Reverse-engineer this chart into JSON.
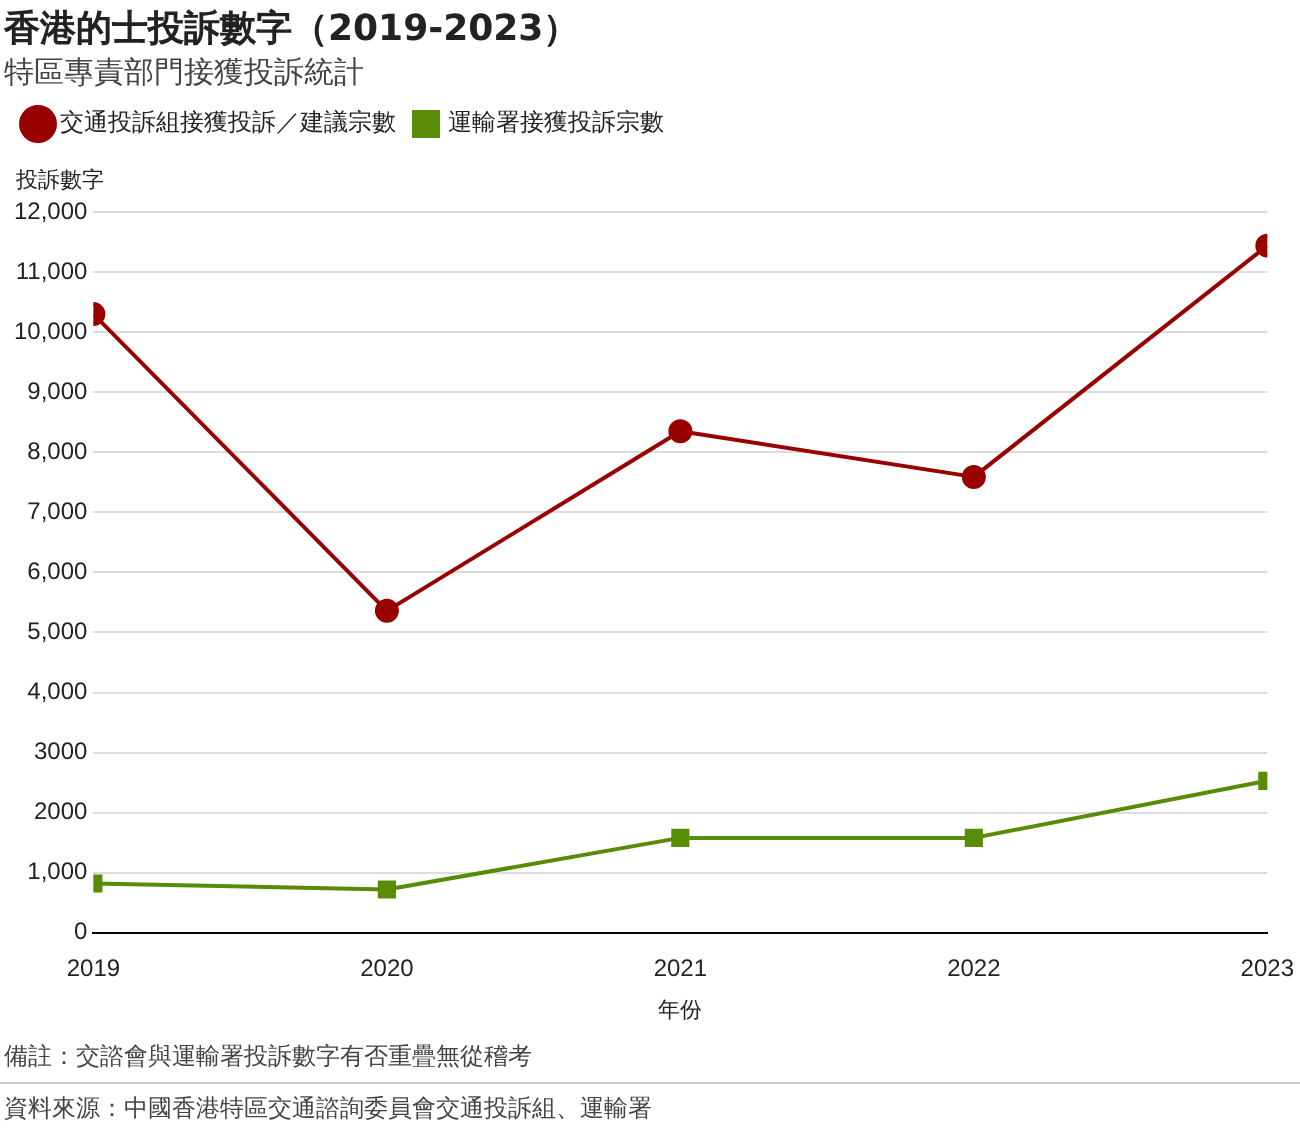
{
  "chart_data": {
    "type": "line",
    "title": "香港的士投訴數字（2019-2023）",
    "subtitle": "特區專責部門接獲投訴統計",
    "xlabel": "年份",
    "ylabel": "投訴數字",
    "x": [
      2019,
      2020,
      2021,
      2022,
      2023
    ],
    "series": [
      {
        "name": "交通投訴組接獲投訴／建議宗數",
        "color": "#990000",
        "marker": "circle",
        "values": [
          10300,
          5360,
          8350,
          7590,
          11440
        ]
      },
      {
        "name": "運輸署接獲投訴宗數",
        "color": "#588c07",
        "marker": "square",
        "values": [
          820,
          720,
          1580,
          1580,
          2530
        ]
      }
    ],
    "xlim": [
      2019,
      2023
    ],
    "xticks": [
      2019,
      2020,
      2021,
      2022,
      2023
    ],
    "ylim": [
      0,
      12000
    ],
    "yticks": [
      0,
      {
        "value": 1000,
        "label": "1,000"
      },
      2000,
      3000,
      {
        "value": 4000,
        "label": "4,000"
      },
      {
        "value": 5000,
        "label": "5,000"
      },
      {
        "value": 6000,
        "label": "6,000"
      },
      {
        "value": 7000,
        "label": "7,000"
      },
      {
        "value": 8000,
        "label": "8,000"
      },
      {
        "value": 9000,
        "label": "9,000"
      },
      {
        "value": 10000,
        "label": "10,000"
      },
      {
        "value": 11000,
        "label": "11,000"
      },
      {
        "value": 12000,
        "label": "12,000"
      }
    ],
    "grid": "y",
    "legend": "top left",
    "line_style": "solid",
    "annotations": [
      "備註：交諮會與運輸署投訴數字有否重疊無從稽考",
      "資料來源：中國香港特區交通諮詢委員會交通投訴組、運輸署"
    ]
  }
}
